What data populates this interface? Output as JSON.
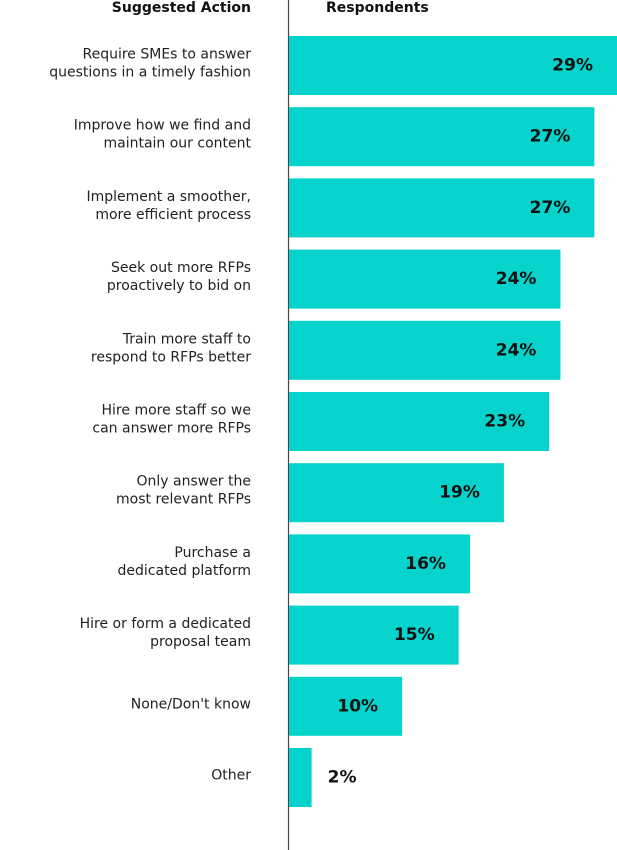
{
  "chart_data": {
    "type": "bar",
    "orientation": "horizontal",
    "category_header": "Suggested Action",
    "value_header": "Respondents",
    "categories": [
      [
        "Require SMEs to answer",
        "questions in a timely fashion"
      ],
      [
        "Improve how we find and",
        "maintain our content"
      ],
      [
        "Implement a smoother,",
        "more efficient process"
      ],
      [
        "Seek out more RFPs",
        "proactively to bid on"
      ],
      [
        "Train more staff to",
        "respond to RFPs better"
      ],
      [
        "Hire more staff so we",
        "can answer more RFPs"
      ],
      [
        "Only answer the",
        "most relevant RFPs"
      ],
      [
        "Purchase a",
        "dedicated platform"
      ],
      [
        "Hire or form a dedicated",
        "proposal team"
      ],
      [
        "None/Don't know"
      ],
      [
        "Other"
      ]
    ],
    "values": [
      29,
      27,
      27,
      24,
      24,
      23,
      19,
      16,
      15,
      10,
      2
    ],
    "value_labels": [
      "29%",
      "27%",
      "27%",
      "24%",
      "24%",
      "23%",
      "19%",
      "16%",
      "15%",
      "10%",
      "2%"
    ],
    "color": "#06d3cb",
    "xlim": [
      0,
      29
    ]
  }
}
